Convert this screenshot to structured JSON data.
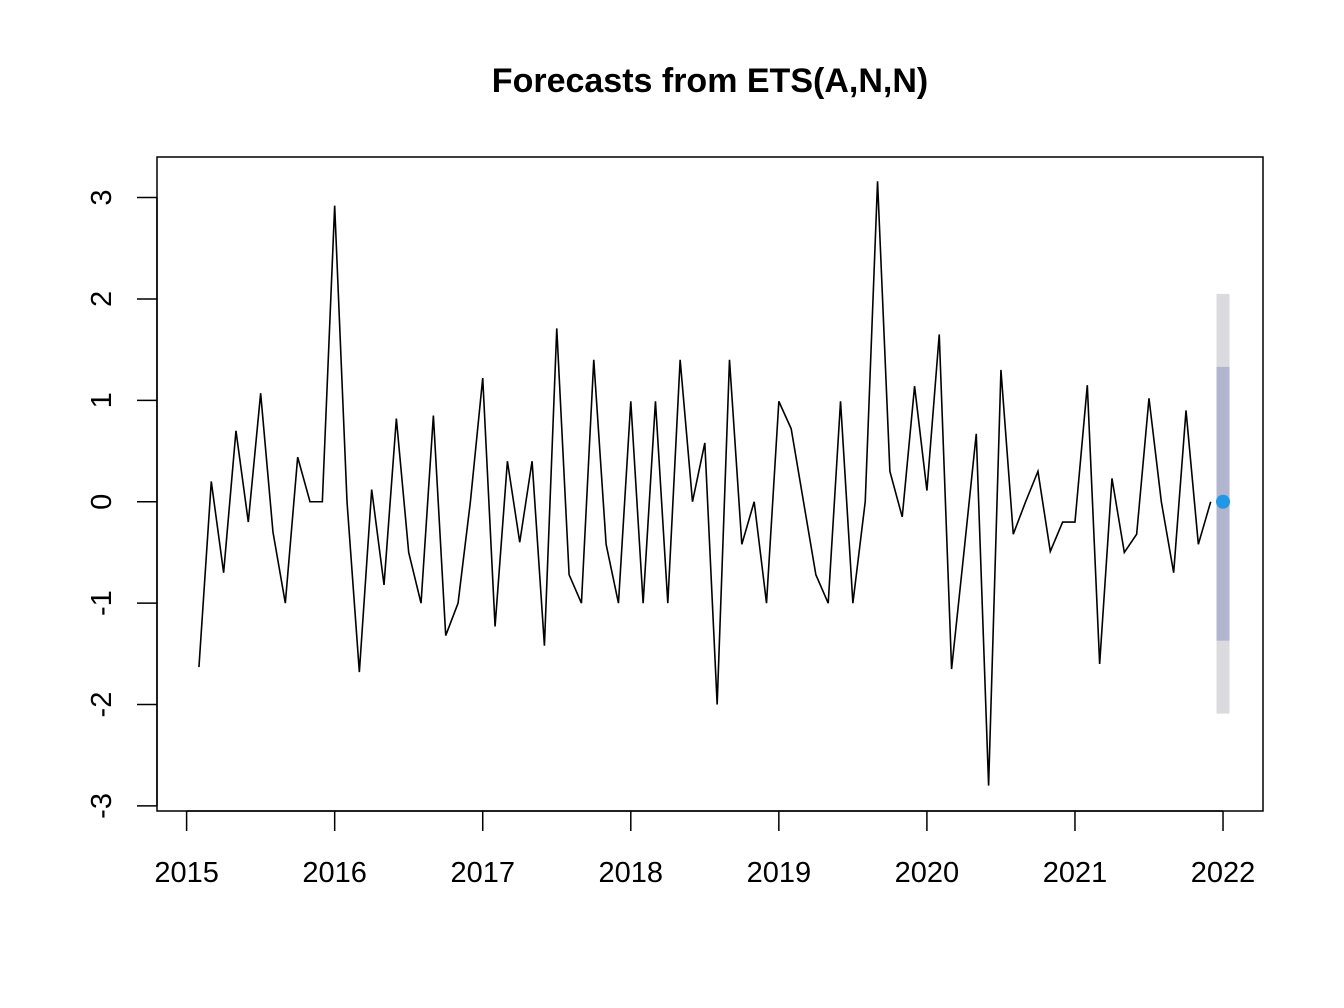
{
  "chart_data": {
    "type": "line",
    "title": "Forecasts from ETS(A,N,N)",
    "xlabel": "",
    "ylabel": "",
    "xlim": [
      2014.8,
      2022.27
    ],
    "ylim": [
      -3.05,
      3.4
    ],
    "x_ticks": [
      2015,
      2016,
      2017,
      2018,
      2019,
      2020,
      2021,
      2022
    ],
    "x_tick_labels": [
      "2015",
      "2016",
      "2017",
      "2018",
      "2019",
      "2020",
      "2021",
      "2022"
    ],
    "y_ticks": [
      -3,
      -2,
      -1,
      0,
      1,
      2,
      3
    ],
    "y_tick_labels": [
      "-3",
      "-2",
      "-1",
      "0",
      "1",
      "2",
      "3"
    ],
    "grid": false,
    "colors": {
      "series": "#000000",
      "point_forecast": "#2297E6",
      "interval_80": "#B1B5CE",
      "interval_95": "#DBDBDF"
    },
    "series": {
      "start_year": 2015,
      "start_month": 2,
      "frequency": 12,
      "values": [
        -1.63,
        0.2,
        -0.7,
        0.7,
        -0.2,
        1.07,
        -0.3,
        -1.0,
        0.44,
        0.0,
        0.0,
        2.92,
        0.0,
        -1.68,
        0.12,
        -0.82,
        0.82,
        -0.5,
        -1.0,
        0.85,
        -1.32,
        -1.0,
        0.0,
        1.22,
        -1.23,
        0.4,
        -0.4,
        0.4,
        -1.42,
        1.71,
        -0.72,
        -1.0,
        1.4,
        -0.42,
        -1.0,
        0.99,
        -1.0,
        0.99,
        -1.0,
        1.4,
        0.0,
        0.58,
        -2.0,
        1.4,
        -0.42,
        0.0,
        -1.0,
        0.99,
        0.72,
        0.0,
        -0.72,
        -1.0,
        0.99,
        -1.0,
        0.0,
        3.16,
        0.3,
        -0.15,
        1.14,
        0.11,
        1.65,
        -1.65,
        -0.5,
        0.67,
        -2.8,
        1.3,
        -0.32,
        0.0,
        0.3,
        -0.49,
        -0.2,
        -0.2,
        1.15,
        -1.6,
        0.23,
        -0.5,
        -0.32,
        1.02,
        0.0,
        -0.7,
        0.9,
        -0.42,
        0.0
      ]
    },
    "forecast": {
      "x": 2022.0,
      "point": 0.0,
      "lo80": -1.37,
      "hi80": 1.33,
      "lo95": -2.09,
      "hi95": 2.05
    }
  }
}
